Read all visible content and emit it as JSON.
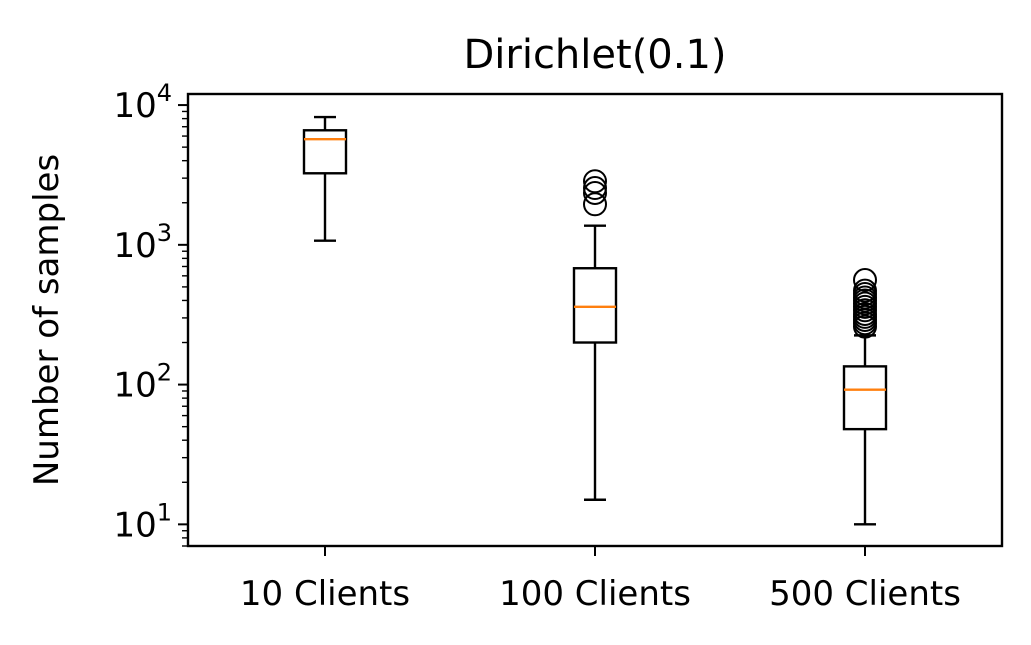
{
  "chart_data": {
    "type": "box",
    "title": "Dirichlet(0.1)",
    "xlabel": "",
    "ylabel": "Number of samples",
    "y_scale": "log",
    "ylim": [
      7,
      12000
    ],
    "yticks": [
      {
        "value": 10,
        "base": "10",
        "exp": "1"
      },
      {
        "value": 100,
        "base": "10",
        "exp": "2"
      },
      {
        "value": 1000,
        "base": "10",
        "exp": "3"
      },
      {
        "value": 10000,
        "base": "10",
        "exp": "4"
      }
    ],
    "categories": [
      "10 Clients",
      "100 Clients",
      "500 Clients"
    ],
    "boxes": [
      {
        "name": "10 Clients",
        "whisker_low": 1070,
        "q1": 3250,
        "median": 5700,
        "q3": 6600,
        "whisker_high": 8200,
        "outliers": []
      },
      {
        "name": "100 Clients",
        "whisker_low": 15,
        "q1": 200,
        "median": 360,
        "q3": 680,
        "whisker_high": 1370,
        "outliers": [
          1950,
          2350,
          2550,
          2850
        ]
      },
      {
        "name": "500 Clients",
        "whisker_low": 10,
        "q1": 48,
        "median": 92,
        "q3": 135,
        "whisker_high": 225,
        "outliers": [
          260,
          275,
          290,
          305,
          320,
          340,
          360,
          380,
          400,
          420,
          445,
          470,
          560
        ]
      }
    ],
    "grid": false,
    "colors": {
      "box": "#000000",
      "median": "#ff7f0e",
      "outlier": "#000000"
    }
  }
}
